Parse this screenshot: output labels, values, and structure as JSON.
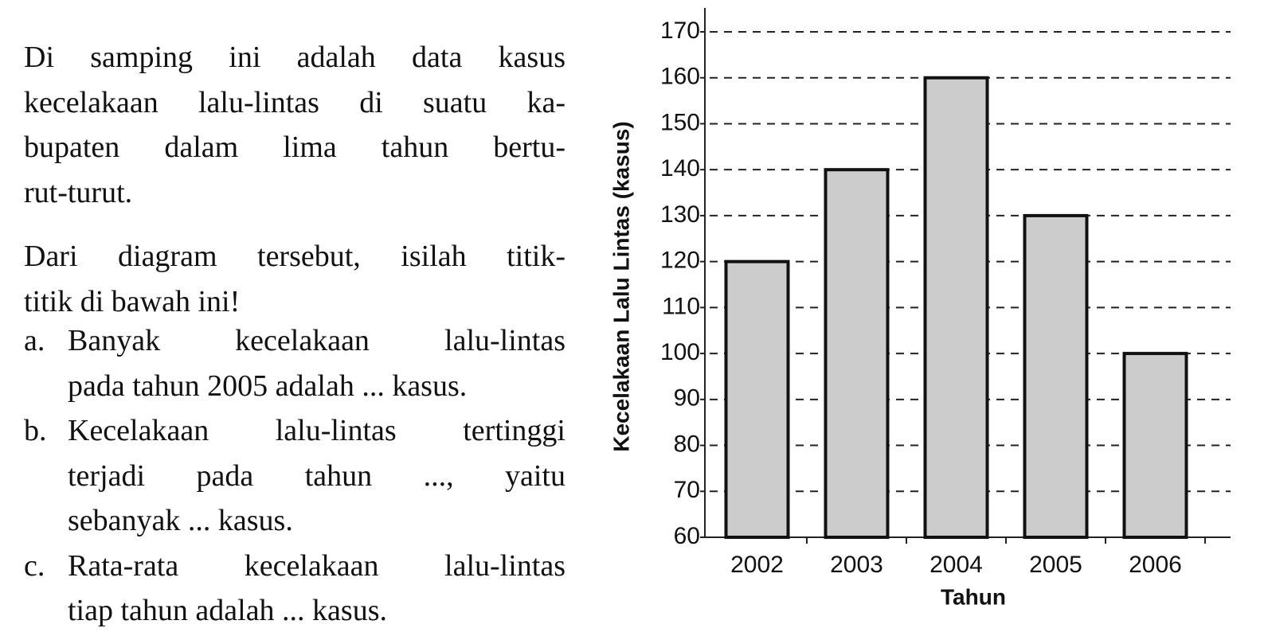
{
  "intro": [
    "Di samping ini adalah data kasus",
    "kecelakaan lalu-lintas di suatu ka-",
    "bupaten dalam lima tahun bertu-",
    "rut-turut."
  ],
  "question": [
    "Dari diagram tersebut, isilah titik-",
    "titik di bawah ini!"
  ],
  "items": [
    {
      "label": "a.",
      "lines": [
        "Banyak kecelakaan lalu-lintas",
        "pada tahun 2005 adalah ... kasus."
      ]
    },
    {
      "label": "b.",
      "lines": [
        "Kecelakaan lalu-lintas tertinggi",
        "terjadi pada tahun ..., yaitu",
        "sebanyak ... kasus."
      ]
    },
    {
      "label": "c.",
      "lines": [
        "Rata-rata kecelakaan lalu-lintas",
        "tiap tahun adalah ... kasus."
      ]
    }
  ],
  "chart_data": {
    "type": "bar",
    "y_label": "Kecelakaan Lalu Lintas (kasus)",
    "x_label": "Tahun",
    "categories": [
      "2002",
      "2003",
      "2004",
      "2005",
      "2006"
    ],
    "values": [
      120,
      140,
      160,
      130,
      100
    ],
    "color": "#cccccc",
    "ylim": [
      60,
      170
    ],
    "yticks": [
      60,
      70,
      80,
      90,
      100,
      110,
      120,
      130,
      140,
      150,
      160,
      170
    ],
    "grid": true
  }
}
